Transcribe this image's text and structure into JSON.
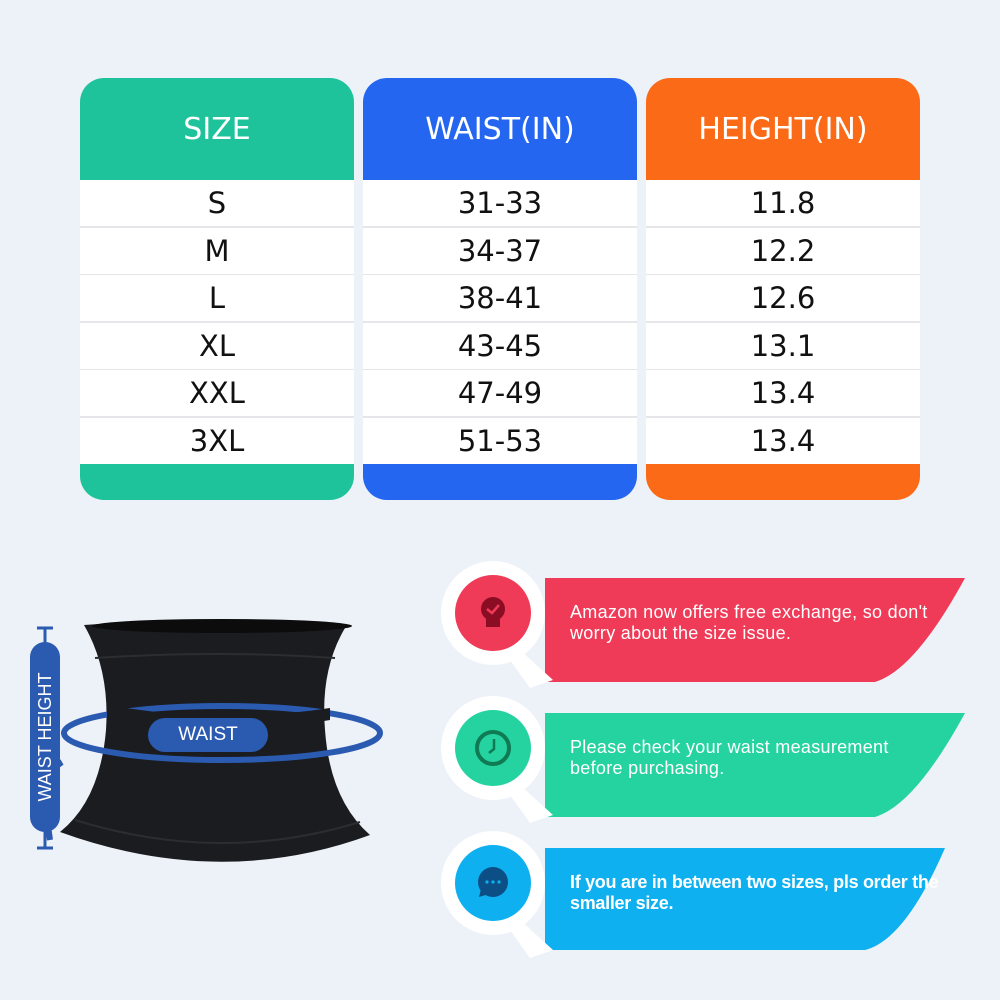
{
  "colors": {
    "size": "#1fc39b",
    "waist": "#2466ef",
    "height": "#fb6a16",
    "tip1": "#ef3b57",
    "tip2": "#25d3a0",
    "tip3": "#0fb0ef",
    "diagram": "#2b5bb0"
  },
  "table": {
    "headers": [
      "SIZE",
      "WAIST(IN)",
      "HEIGHT(IN)"
    ],
    "rows": [
      [
        "S",
        "31-33",
        "11.8"
      ],
      [
        "M",
        "34-37",
        "12.2"
      ],
      [
        "L",
        "38-41",
        "12.6"
      ],
      [
        "XL",
        "43-45",
        "13.1"
      ],
      [
        "XXL",
        "47-49",
        "13.4"
      ],
      [
        "3XL",
        "51-53",
        "13.4"
      ]
    ]
  },
  "diagram": {
    "waist_label": "WAIST",
    "height_label": "WAIST HEIGHT"
  },
  "tips": [
    {
      "icon": "lightbulb-check-icon",
      "text": "Amazon now offers free exchange, so don't worry about the size issue."
    },
    {
      "icon": "clock-icon",
      "text": "Please check your waist measurement before purchasing."
    },
    {
      "icon": "chat-bubble-icon",
      "text": "If you are in between two sizes, pls order the smaller size."
    }
  ]
}
